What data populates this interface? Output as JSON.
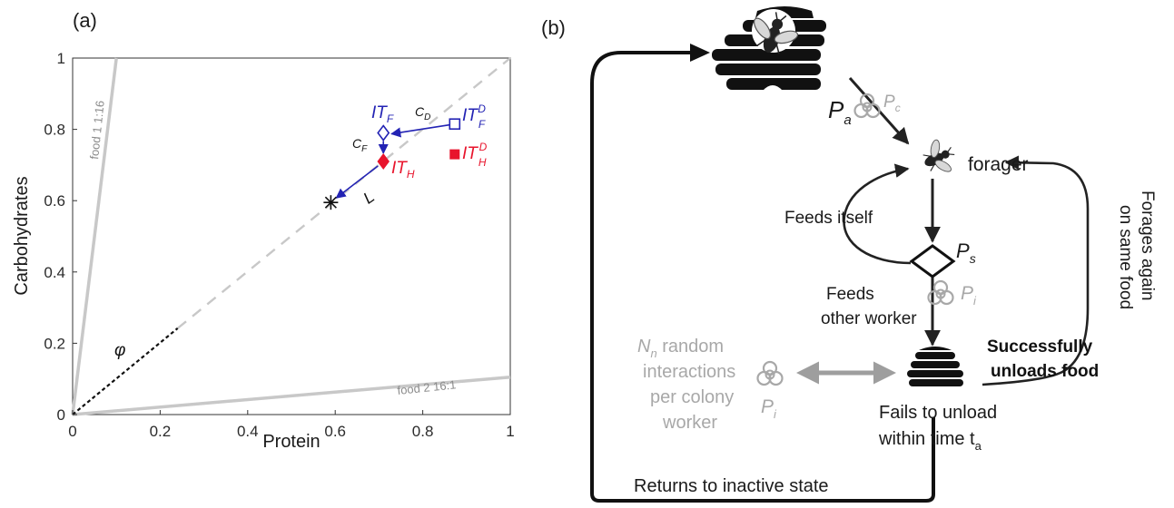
{
  "panel_a": {
    "label": "(a)",
    "xlabel": "Protein",
    "ylabel": "Carbohydrates",
    "xticks": [
      "0",
      "0.2",
      "0.4",
      "0.6",
      "0.8",
      "1"
    ],
    "yticks": [
      "0",
      "0.2",
      "0.4",
      "0.6",
      "0.8",
      "1"
    ],
    "food1_label": "food 1 1:16",
    "food2_label": "food 2 16:1",
    "phi_label": "φ",
    "cD_label": "C",
    "cD_sub": "D",
    "cF_label": "C",
    "cF_sub": "F",
    "L_label": "L",
    "ITF_label": "IT",
    "ITF_sub": "F",
    "ITFD_label": "IT",
    "ITFD_sub": "F",
    "ITFD_sup": "D",
    "ITH_label": "IT",
    "ITH_sub": "H",
    "ITHD_label": "IT",
    "ITHD_sub": "H",
    "ITHD_sup": "D",
    "colors": {
      "blue": "#2323b4",
      "red": "#e8142c",
      "grey": "#c8c8c8"
    }
  },
  "chart_data": {
    "type": "scatter",
    "xlabel": "Protein",
    "ylabel": "Carbohydrates",
    "xlim": [
      0,
      1
    ],
    "ylim": [
      0,
      1
    ],
    "lines": [
      {
        "name": "food 1 1:16",
        "x": [
          0,
          0.1
        ],
        "y": [
          0,
          1
        ]
      },
      {
        "name": "food 2 16:1",
        "x": [
          0,
          1
        ],
        "y": [
          0,
          0.105
        ]
      }
    ],
    "points": [
      {
        "name": "IT_F^D",
        "x": 0.873,
        "y": 0.815
      },
      {
        "name": "IT_F",
        "x": 0.71,
        "y": 0.79
      },
      {
        "name": "IT_H",
        "x": 0.71,
        "y": 0.71
      },
      {
        "name": "IT_H^D",
        "x": 0.873,
        "y": 0.73
      },
      {
        "name": "*",
        "x": 0.59,
        "y": 0.595
      }
    ]
  },
  "panel_b": {
    "label": "(b)",
    "Pa_label": "P",
    "Pa_sub": "a",
    "Pc_label": "P",
    "Pc_sub": "c",
    "Ps_label": "P",
    "Ps_sub": "s",
    "Pi_label": "P",
    "Pi_sub": "i",
    "Pi2_label": "P",
    "Pi2_sub": "i",
    "forager": "forager",
    "feeds_itself": "Feeds itself",
    "feeds_other_1": "Feeds",
    "feeds_other_2": "other worker",
    "forages_1": "Forages again",
    "forages_2": "on same food",
    "success_1": "Successfully",
    "success_2": "unloads food",
    "fails_1": "Fails to unload",
    "fails_2": "within time t",
    "fails_sub": "a",
    "random_1": "N",
    "random_1_sub": "n",
    "random_1_rest": " random",
    "random_2": "interactions",
    "random_3": "per colony",
    "random_4": "worker",
    "returns": "Returns to inactive state"
  }
}
